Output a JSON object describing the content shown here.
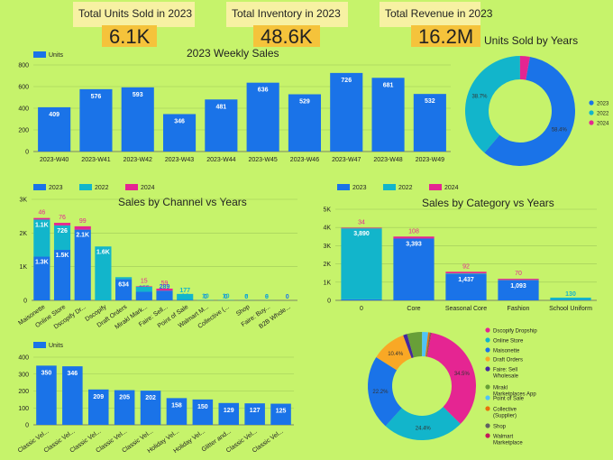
{
  "kpis": [
    {
      "label": "Total Units Sold in 2023",
      "value": "6.1K"
    },
    {
      "label": "Total Inventory in 2023",
      "value": "48.6K"
    },
    {
      "label": "Total Revenue in 2023",
      "value": "16.2M"
    }
  ],
  "colors": {
    "2023": "#1a73e8",
    "2022": "#12b5cb",
    "2024": "#e52592",
    "units": "#1a73e8"
  },
  "chart_data": [
    {
      "id": "weekly",
      "type": "bar",
      "title": "2023 Weekly Sales",
      "legend": [
        "Units"
      ],
      "categories": [
        "2023-W40",
        "2023-W41",
        "2023-W42",
        "2023-W43",
        "2023-W44",
        "2023-W45",
        "2023-W46",
        "2023-W47",
        "2023-W48",
        "2023-W49"
      ],
      "values": [
        409,
        576,
        593,
        346,
        481,
        636,
        529,
        726,
        681,
        532
      ],
      "ylim": [
        0,
        800
      ],
      "yticks": [
        "0",
        "200",
        "400",
        "600",
        "800"
      ]
    },
    {
      "id": "years_donut",
      "type": "pie",
      "title": "Units Sold by Years",
      "legend": [
        "2023",
        "2022",
        "2024"
      ],
      "values": [
        58.4,
        38.7,
        2.9
      ],
      "labels": [
        "58.4%",
        "38.7%",
        ""
      ]
    },
    {
      "id": "channel",
      "type": "bar",
      "title": "Sales by Channel vs Years",
      "legend": [
        "2023",
        "2022",
        "2024"
      ],
      "categories": [
        "Maisonette",
        "Online Store",
        "Dscopify Dr...",
        "Dscopify",
        "Draft Orders",
        "Mirakl Mark...",
        "Faire: Sell...",
        "Point of Sale",
        "Walmart M...",
        "Collective (...",
        "Shop",
        "Faire: Buy...",
        "B2B Whole..."
      ],
      "series": [
        {
          "name": "2023",
          "values": [
            1300,
            1500,
            2100,
            0,
            634,
            255,
            289,
            14,
            0,
            0,
            0,
            0,
            0
          ],
          "labels": [
            "1.3K",
            "1.5K",
            "2.1K",
            "",
            "634",
            "255",
            "289",
            "14",
            "0",
            "0",
            "0",
            "0",
            "0"
          ]
        },
        {
          "name": "2022",
          "values": [
            1100,
            726,
            0,
            1600,
            55,
            150,
            0,
            177,
            10,
            10,
            5,
            3,
            0
          ],
          "labels": [
            "1.1K",
            "726",
            "",
            "1.6K",
            "",
            "",
            "",
            "177",
            "10",
            "10",
            "5",
            "3",
            ""
          ]
        },
        {
          "name": "2024",
          "values": [
            46,
            76,
            99,
            0,
            0,
            15,
            59,
            0,
            0,
            0,
            0,
            0,
            0
          ],
          "labels": [
            "46",
            "76",
            "99",
            "",
            "",
            "15",
            "59",
            "",
            "",
            "",
            "",
            "",
            ""
          ]
        }
      ],
      "ylim": [
        0,
        3000
      ],
      "yticks": [
        "0",
        "1K",
        "2K",
        "3K"
      ]
    },
    {
      "id": "category",
      "type": "bar",
      "title": "Sales by Category vs Years",
      "legend": [
        "2023",
        "2022",
        "2024"
      ],
      "categories": [
        "0",
        "Core",
        "Seasonal Core",
        "Fashion",
        "School Uniform"
      ],
      "series": [
        {
          "name": "2023",
          "values": [
            60,
            3393,
            1437,
            1093,
            20
          ],
          "labels": [
            "",
            "3,393",
            "1,437",
            "1,093",
            ""
          ]
        },
        {
          "name": "2022",
          "values": [
            3890,
            0,
            40,
            20,
            130
          ],
          "labels": [
            "3,890",
            "",
            "",
            "",
            "130"
          ]
        },
        {
          "name": "2024",
          "values": [
            34,
            108,
            92,
            70,
            0
          ],
          "labels": [
            "34",
            "108",
            "92",
            "70",
            ""
          ]
        }
      ],
      "ylim": [
        0,
        5000
      ],
      "yticks": [
        "0",
        "1K",
        "2K",
        "3K",
        "4K",
        "5K"
      ]
    },
    {
      "id": "products",
      "type": "bar",
      "legend": [
        "Units"
      ],
      "categories": [
        "Classic Vel...",
        "Classic Vel...",
        "Classic Vel...",
        "Classic Vel...",
        "Classic Vel...",
        "Holiday Vel...",
        "Holiday Vel...",
        "Glitter and...",
        "Classic Vel...",
        "Classic Vel..."
      ],
      "values": [
        350,
        346,
        209,
        205,
        202,
        158,
        150,
        129,
        127,
        125
      ],
      "ylim": [
        0,
        400
      ],
      "yticks": [
        "0",
        "100",
        "200",
        "300",
        "400"
      ]
    },
    {
      "id": "channel_donut",
      "type": "pie",
      "legend": [
        "Dscopify Dropship",
        "Online Store",
        "Maisonette",
        "Draft Orders",
        "Faire: Sell Wholesale",
        "Mirakl Marketplaces App",
        "Point of Sale",
        "Collective (Supplier)",
        "Shop",
        "Walmart Marketplace"
      ],
      "legend_colors": [
        "#e52592",
        "#12b5cb",
        "#1a73e8",
        "#f9a825",
        "#4527a0",
        "#689f38",
        "#4fc3f7",
        "#e8710a",
        "#616161",
        "#c2185b"
      ],
      "values": [
        34.5,
        24.4,
        22.2,
        10.4,
        1.2,
        4.5,
        1.8,
        0.5,
        0.3,
        0.2
      ],
      "labels": [
        "34.5%",
        "24.4%",
        "22.2%",
        "10.4%",
        "",
        "",
        "",
        "",
        "",
        ""
      ]
    }
  ]
}
